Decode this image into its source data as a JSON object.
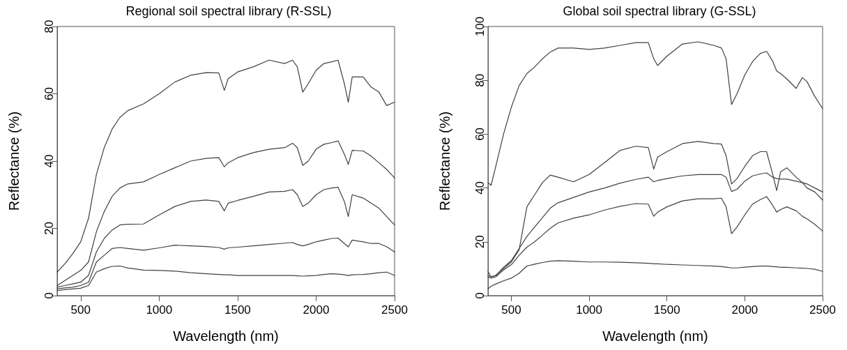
{
  "chart_data": [
    {
      "type": "line",
      "title": "Regional soil spectral library (R-SSL)",
      "xlabel": "Wavelength (nm)",
      "ylabel": "Reflectance (%)",
      "marker": "none",
      "line_style": "solid",
      "xlim": [
        350,
        2500
      ],
      "xticks": [
        500,
        1000,
        1500,
        2000,
        2500
      ],
      "ylim": [
        0,
        80
      ],
      "yticks": [
        0,
        20,
        40,
        60,
        80
      ],
      "x": [
        350,
        400,
        450,
        500,
        550,
        600,
        650,
        700,
        750,
        800,
        900,
        1000,
        1100,
        1200,
        1300,
        1380,
        1415,
        1440,
        1500,
        1600,
        1700,
        1800,
        1850,
        1880,
        1915,
        1950,
        2000,
        2050,
        2100,
        2140,
        2180,
        2205,
        2230,
        2300,
        2350,
        2400,
        2450,
        2500
      ],
      "series": [
        {
          "color": "#404040",
          "values": [
            7,
            9.5,
            12.5,
            16,
            23,
            36,
            44,
            49.5,
            53,
            55,
            57,
            60,
            63.5,
            65.5,
            66.3,
            66.2,
            61,
            64.5,
            66.5,
            68,
            70,
            69,
            70,
            68,
            60.5,
            63,
            67,
            69,
            69.5,
            70,
            63,
            57.5,
            65,
            65,
            62,
            60.5,
            56.5,
            57.5
          ]
        },
        {
          "color": "#404040",
          "values": [
            3,
            4.5,
            6,
            7.5,
            10,
            19,
            25,
            29.5,
            32,
            33.2,
            33.8,
            36,
            38,
            40,
            40.8,
            41,
            38.3,
            39.5,
            41,
            42.5,
            43.5,
            44,
            45.3,
            44,
            38.7,
            40,
            43.5,
            45,
            45.5,
            46,
            42,
            39,
            43.2,
            43,
            41.5,
            39.5,
            37.5,
            35
          ]
        },
        {
          "color": "#404040",
          "values": [
            2.5,
            3,
            3.5,
            4,
            6,
            13,
            17,
            19.5,
            21,
            21.2,
            21.3,
            24,
            26.5,
            28,
            28.4,
            28,
            25.2,
            27.5,
            28.3,
            29.5,
            30.8,
            31,
            31.5,
            30,
            26.5,
            27.5,
            30,
            31.5,
            32,
            32.2,
            28,
            23.5,
            30,
            29,
            27.5,
            26,
            23.5,
            21
          ]
        },
        {
          "color": "#404040",
          "values": [
            2,
            2.3,
            2.5,
            3,
            4,
            10,
            12,
            14,
            14.3,
            14,
            13.5,
            14.2,
            15,
            14.8,
            14.6,
            14.3,
            13.8,
            14.2,
            14.4,
            14.8,
            15.2,
            15.6,
            15.8,
            15.2,
            14.8,
            15.2,
            16,
            16.5,
            17,
            17.1,
            15.5,
            14.5,
            16.5,
            16,
            15.5,
            15.5,
            14.5,
            13
          ]
        },
        {
          "color": "#404040",
          "values": [
            1.5,
            1.8,
            2,
            2.2,
            3,
            7,
            8,
            8.7,
            8.8,
            8.2,
            7.6,
            7.5,
            7.3,
            6.8,
            6.5,
            6.3,
            6.2,
            6.2,
            6,
            6,
            6,
            6,
            6,
            5.9,
            5.8,
            5.9,
            6,
            6.3,
            6.5,
            6.4,
            6.2,
            6,
            6.2,
            6.3,
            6.5,
            6.8,
            7,
            6
          ]
        }
      ]
    },
    {
      "type": "line",
      "title": "Global soil spectral library (G-SSL)",
      "xlabel": "Wavelength (nm)",
      "ylabel": "Reflectance (%)",
      "marker": "none",
      "line_style": "solid",
      "xlim": [
        350,
        2500
      ],
      "xticks": [
        500,
        1000,
        1500,
        2000,
        2500
      ],
      "ylim": [
        0,
        100
      ],
      "yticks": [
        0,
        20,
        40,
        60,
        80,
        100
      ],
      "x": [
        350,
        370,
        400,
        450,
        500,
        550,
        600,
        650,
        700,
        750,
        800,
        900,
        1000,
        1100,
        1200,
        1300,
        1380,
        1415,
        1440,
        1500,
        1600,
        1700,
        1800,
        1850,
        1880,
        1915,
        1950,
        2000,
        2050,
        2100,
        2140,
        2180,
        2205,
        2230,
        2270,
        2330,
        2370,
        2400,
        2450,
        2500
      ],
      "series": [
        {
          "color": "#404040",
          "values": [
            42,
            41,
            48,
            60,
            70,
            78,
            82.5,
            85,
            88,
            90.5,
            92,
            92,
            91.5,
            92,
            93,
            94,
            94,
            88,
            85.5,
            89,
            93.5,
            94.3,
            93,
            92,
            88,
            71,
            75,
            82,
            87,
            90,
            90.8,
            87,
            83.5,
            82.5,
            80.5,
            77,
            81,
            79.5,
            74,
            69.5
          ]
        },
        {
          "color": "#404040",
          "values": [
            9,
            7,
            7.5,
            10,
            12.5,
            17,
            33,
            37.5,
            42,
            44.8,
            44,
            42.3,
            45,
            49.5,
            54,
            55.5,
            55,
            47,
            51.5,
            53.5,
            56.5,
            57.3,
            56.5,
            56.3,
            52,
            41.5,
            43.5,
            48,
            52,
            53.5,
            53.5,
            45,
            39,
            46,
            47.5,
            44,
            42,
            40,
            38.5,
            35.5
          ]
        },
        {
          "color": "#404040",
          "values": [
            7.5,
            7,
            7.5,
            10.5,
            13,
            17.5,
            22,
            25.5,
            29,
            32.5,
            34.5,
            36.5,
            38.5,
            40,
            41.8,
            43.2,
            44,
            42.3,
            42.8,
            43.5,
            44.5,
            45,
            45,
            45,
            44,
            38.7,
            39.5,
            42.5,
            44.5,
            45.2,
            45.6,
            44,
            43.5,
            43.3,
            43.3,
            42.5,
            42,
            41.5,
            40,
            38.5
          ]
        },
        {
          "color": "#404040",
          "values": [
            7,
            6.5,
            7,
            9.5,
            11.5,
            15,
            18,
            20,
            22.5,
            25,
            27,
            28.8,
            30,
            31.8,
            33.2,
            34.2,
            34,
            29.5,
            31,
            33,
            35.2,
            36,
            36,
            36.2,
            33,
            23,
            25.5,
            30,
            34,
            35.7,
            36.8,
            33.5,
            31,
            32,
            33,
            31.5,
            29.5,
            28.5,
            26.5,
            24
          ]
        },
        {
          "color": "#404040",
          "values": [
            2.5,
            3.5,
            4.3,
            5.5,
            6.5,
            8.3,
            11,
            11.7,
            12.3,
            12.8,
            13,
            12.8,
            12.5,
            12.5,
            12.4,
            12.2,
            12,
            11.8,
            11.8,
            11.6,
            11.4,
            11.2,
            11,
            10.8,
            10.6,
            10.3,
            10.3,
            10.6,
            10.8,
            11,
            11,
            10.8,
            10.7,
            10.5,
            10.5,
            10.3,
            10.2,
            10.1,
            9.8,
            9
          ]
        }
      ]
    }
  ]
}
